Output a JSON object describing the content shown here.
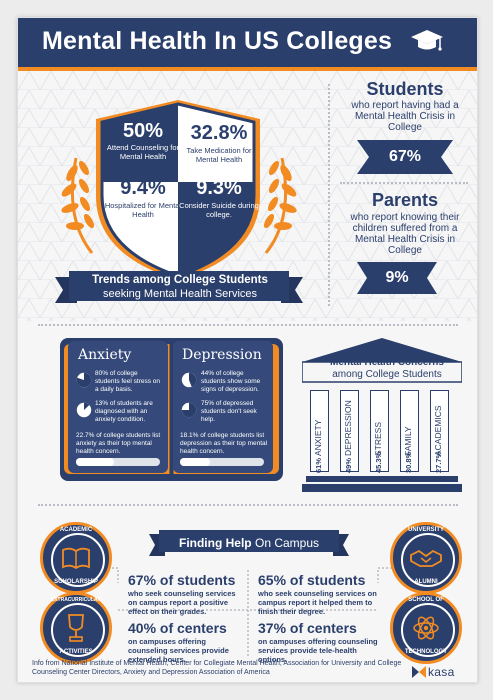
{
  "header": {
    "title": "Mental Health In US Colleges",
    "icon": "graduation-cap-icon"
  },
  "shield": {
    "stats": [
      {
        "value": "50%",
        "label": "Attend Counseling for Mental Health"
      },
      {
        "value": "32.8%",
        "label": "Take Medication for Mental Health"
      },
      {
        "value": "9.4%",
        "label": "Hospitalized for Mental Health"
      },
      {
        "value": "9.3%",
        "label": "Consider Suicide during college."
      }
    ],
    "banner_line1": "Trends among College Students",
    "banner_line2": "seeking Mental Health Services"
  },
  "students": {
    "title": "Students",
    "subtitle": "who report having had a Mental Health Crisis in College",
    "value": "67%"
  },
  "parents": {
    "title": "Parents",
    "subtitle": "who report knowing their children suffered from a Mental Health Crisis in College",
    "value": "9%"
  },
  "book": {
    "anxiety": {
      "title": "Anxiety",
      "items": [
        "80% of college students feel stress on a daily basis.",
        "13% of students are diagnosed with an anxiety condition.",
        "22.7% of college students list anxiety as their top mental health concern."
      ],
      "pies": [
        0.8,
        0.13
      ],
      "bar": 0.227
    },
    "depression": {
      "title": "Depression",
      "items": [
        "44% of college students show some signs of depression.",
        "75% of depressed students don't seek help.",
        "18.1% of college students list depression as their top mental health concern."
      ],
      "pies": [
        0.44,
        0.75
      ],
      "bar": 0.181
    }
  },
  "concerns": {
    "title_line1": "Mental Health Concerns",
    "title_line2": "among College Students",
    "items": [
      {
        "label": "ANXIETY",
        "value": "61%"
      },
      {
        "label": "DEPRESSION",
        "value": "49%"
      },
      {
        "label": "STRESS",
        "value": "45.3%"
      },
      {
        "label": "FAMILY",
        "value": "30.8%"
      },
      {
        "label": "ACADEMICS",
        "value": "27.7%"
      }
    ]
  },
  "finding_help": {
    "title_bold": "Finding Help",
    "title_rest": "On Campus",
    "badges": [
      {
        "label1": "ACADEMIC",
        "label2": "SCHOLARSHIP",
        "icon": "open-book-icon"
      },
      {
        "label1": "UNIVERSITY",
        "label2": "ALUMNI",
        "icon": "handshake-icon"
      },
      {
        "label1": "EXTRACURRICULAR",
        "label2": "ACTIVITIES",
        "icon": "trophy-icon"
      },
      {
        "label1": "SCHOOL OF",
        "label2": "TECHNOLOGY",
        "icon": "atom-icon"
      }
    ],
    "facts": [
      {
        "big": "67% of students",
        "small": "who seek counseling services on campus report a positive effect on their grades."
      },
      {
        "big": "65% of students",
        "small": "who seek counseling services on campus report it helped them to finish their degree."
      },
      {
        "big": "40% of centers",
        "small": "on campuses offering counseling services provide extended hours."
      },
      {
        "big": "37% of centers",
        "small": "on campuses offering counseling services provide tele-health options."
      }
    ]
  },
  "footer": {
    "source": "Info from National Institute of Mental Health, Center for Collegiate Mental Health, Association for University and College Counseling Center Directors, Anxiety and Depression Association of America",
    "logo": "kasa"
  },
  "colors": {
    "navy": "#2b3f6c",
    "orange": "#f28c22",
    "bg": "#f6f6f6"
  }
}
